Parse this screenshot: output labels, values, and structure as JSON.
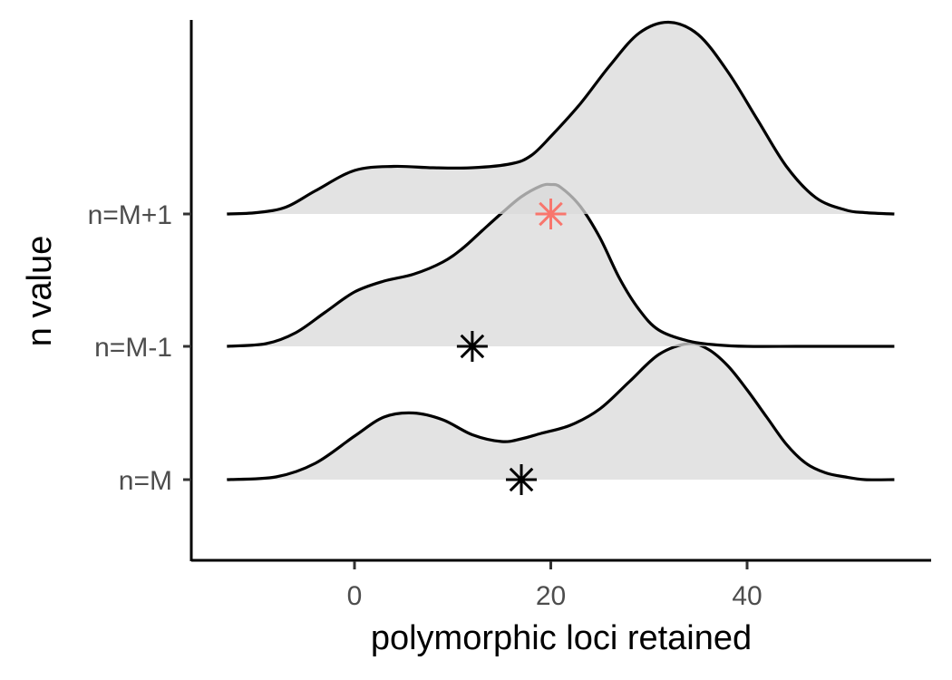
{
  "chart_data": {
    "type": "ridgeline",
    "xlabel": "polymorphic loci retained",
    "ylabel": "n value",
    "xlim": [
      -16,
      58
    ],
    "x_ticks": [
      0,
      20,
      40
    ],
    "x_tick_labels": [
      "0",
      "20",
      "40"
    ],
    "grid": false,
    "categories": [
      "n=M",
      "n=M-1",
      "n=M+1"
    ],
    "series": [
      {
        "category": "n=M",
        "x": [
          -13,
          -8,
          -4,
          0,
          3,
          6,
          9,
          12,
          15,
          17,
          19,
          22,
          25,
          28,
          31,
          34,
          36,
          38,
          40,
          42,
          44,
          46,
          48,
          50,
          52,
          55
        ],
        "density": [
          0.0,
          0.02,
          0.12,
          0.32,
          0.46,
          0.49,
          0.44,
          0.33,
          0.28,
          0.3,
          0.34,
          0.4,
          0.52,
          0.72,
          0.92,
          1.0,
          0.96,
          0.84,
          0.66,
          0.46,
          0.26,
          0.12,
          0.05,
          0.02,
          0.0,
          0.0
        ],
        "star_x": 17,
        "star_color": "#000000"
      },
      {
        "category": "n=M-1",
        "x": [
          -13,
          -9,
          -6,
          -3,
          0,
          3,
          6,
          9,
          11,
          13,
          15,
          17,
          19,
          20,
          21,
          23,
          25,
          27,
          29,
          31,
          34,
          37,
          40,
          45,
          50,
          55
        ],
        "density": [
          0.0,
          0.02,
          0.1,
          0.25,
          0.4,
          0.48,
          0.53,
          0.62,
          0.72,
          0.85,
          0.98,
          1.1,
          1.18,
          1.19,
          1.17,
          1.03,
          0.8,
          0.5,
          0.27,
          0.12,
          0.04,
          0.01,
          0.0,
          0.0,
          0.0,
          0.0
        ],
        "star_x": 12,
        "star_color": "#000000"
      },
      {
        "category": "n=M+1",
        "x": [
          -13,
          -10,
          -7,
          -4,
          0,
          4,
          8,
          12,
          16,
          18,
          20,
          23,
          26,
          29,
          32,
          35,
          38,
          41,
          44,
          47,
          50,
          52,
          55
        ],
        "density": [
          0.0,
          0.01,
          0.05,
          0.17,
          0.32,
          0.35,
          0.34,
          0.34,
          0.37,
          0.43,
          0.57,
          0.81,
          1.09,
          1.33,
          1.41,
          1.32,
          1.05,
          0.7,
          0.35,
          0.12,
          0.03,
          0.01,
          0.0
        ],
        "star_x": 20,
        "star_color": "#f8766d"
      }
    ]
  }
}
